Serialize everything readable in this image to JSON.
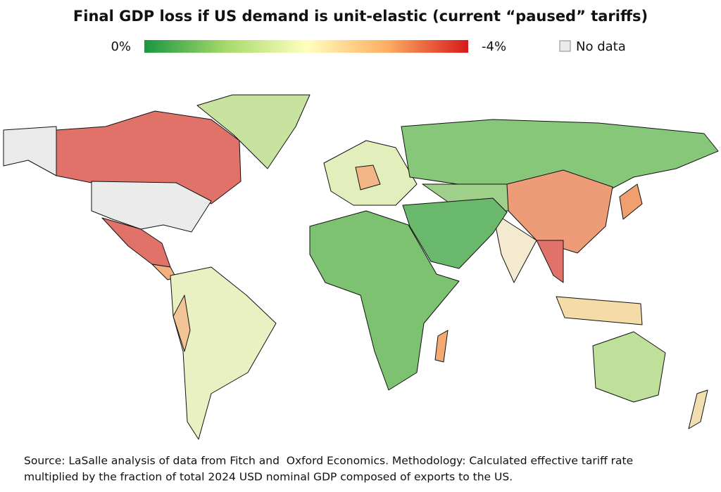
{
  "title": "Final GDP loss if US demand is unit-elastic (current “paused” tariffs)",
  "legend": {
    "min_label": "0%",
    "max_label": "-4%",
    "no_data_label": "No data"
  },
  "source": [
    "Source: LaSalle analysis of data from Fitch and  Oxford Economics. Methodology: Calculated effective tariff rate",
    "multiplied by the fraction of total 2024 USD nominal GDP composed of exports to the US."
  ]
}
